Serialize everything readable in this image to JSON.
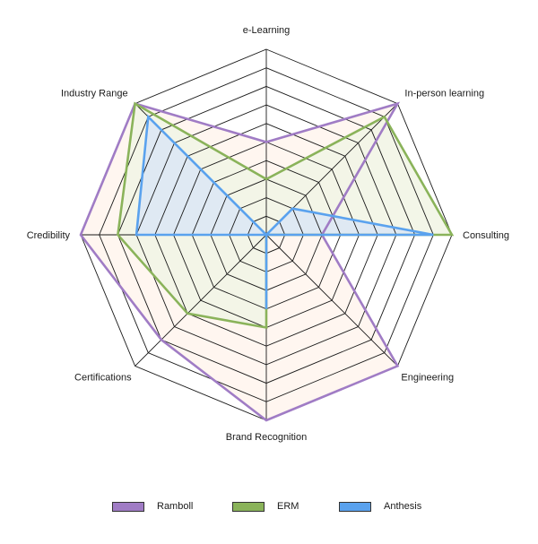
{
  "chart_data": {
    "type": "radar",
    "title": "",
    "axes": [
      "e-Learning",
      "In-person learning",
      "Consulting",
      "Engineering",
      "Brand Recognition",
      "Certifications",
      "Credibility",
      "Industry Range"
    ],
    "range": [
      0,
      10
    ],
    "grid_levels": 10,
    "series": [
      {
        "name": "Ramboll",
        "color": "#a07cc5",
        "fill": "#fff5ee",
        "values": [
          5,
          10,
          3,
          10,
          10,
          8,
          10,
          10
        ]
      },
      {
        "name": "ERM",
        "color": "#8ab35a",
        "fill": "#f2f5e6",
        "values": [
          3,
          9,
          10,
          0,
          5,
          6,
          8,
          10
        ]
      },
      {
        "name": "Anthesis",
        "color": "#5aa2ee",
        "fill": "#dde8f4",
        "values": [
          0,
          2,
          9,
          0,
          4,
          0,
          7,
          9
        ]
      }
    ],
    "legend_position": "bottom"
  }
}
